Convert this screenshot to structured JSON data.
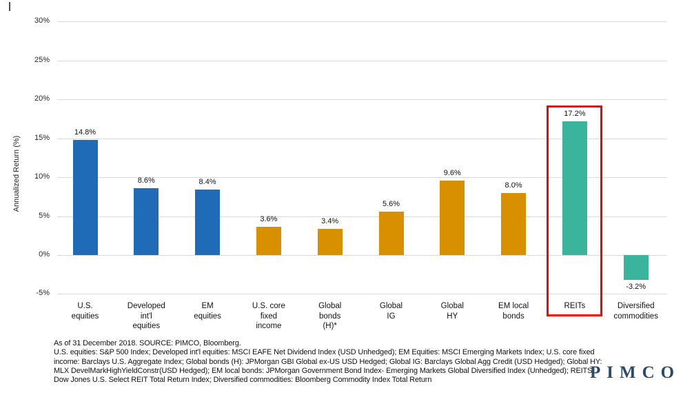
{
  "chart_data": {
    "type": "bar",
    "title": "",
    "xlabel": "",
    "ylabel": "Annualized Return (%)",
    "ylim": [
      -5,
      30
    ],
    "yticks": [
      30,
      25,
      20,
      15,
      10,
      5,
      0,
      -5
    ],
    "ytick_suffix": "%",
    "grid": "horizontal",
    "legend": "none",
    "categories": [
      "U.S. equities",
      "Developed int'l equities",
      "EM equities",
      "U.S. core fixed income",
      "Global bonds (H)*",
      "Global IG",
      "Global HY",
      "EM local bonds",
      "REITs",
      "Diversified commodities"
    ],
    "category_lines": [
      [
        "U.S.",
        "equities"
      ],
      [
        "Developed",
        "int'l",
        "equities"
      ],
      [
        "EM",
        "equities"
      ],
      [
        "U.S. core",
        "fixed",
        "income"
      ],
      [
        "Global",
        "bonds",
        "(H)*"
      ],
      [
        "Global",
        "IG"
      ],
      [
        "Global",
        "HY"
      ],
      [
        "EM local",
        "bonds"
      ],
      [
        "REITs"
      ],
      [
        "Diversified",
        "commodities"
      ]
    ],
    "values": [
      14.8,
      8.6,
      8.4,
      3.6,
      3.4,
      5.6,
      9.6,
      8.0,
      17.2,
      -3.2
    ],
    "value_labels": [
      "14.8%",
      "8.6%",
      "8.4%",
      "3.6%",
      "3.4%",
      "5.6%",
      "9.6%",
      "8.0%",
      "17.2%",
      "-3.2%"
    ],
    "bar_groups": [
      "equities",
      "equities",
      "equities",
      "bonds",
      "bonds",
      "bonds",
      "bonds",
      "bonds",
      "alternatives",
      "alternatives"
    ],
    "group_colors": {
      "equities": "#1f6bb8",
      "bonds": "#d89000",
      "alternatives": "#3bb49d"
    },
    "grid_color": "#d9d9d9",
    "highlight": {
      "category": "REITs",
      "color": "#ff0000"
    }
  },
  "footnote": {
    "lines": [
      "As of 31 December 2018. SOURCE: PIMCO, Bloomberg.",
      "U.S. equities: S&P 500 Index; Developed int'l equities: MSCI EAFE Net Dividend Index (USD Unhedged); EM Equities: MSCI Emerging Markets Index; U.S. core fixed",
      "income: Barclays U.S. Aggregate Index; Global bonds (H): JPMorgan GBI Global ex-US USD Hedged; Global IG: Barclays Global Agg Credit (USD Hedged); Global HY:",
      "MLX DevelMarkHighYieldConstr(USD Hedged); EM local bonds: JPMorgan Government Bond Index- Emerging Markets Global Diversified Index (Unhedged); REITS:",
      "Dow Jones U.S. Select REIT Total Return Index; Diversified commodities: Bloomberg Commodity Index Total Return"
    ]
  },
  "branding": {
    "logo_text": "PIMCO",
    "logo_color": "#2a4a70"
  }
}
